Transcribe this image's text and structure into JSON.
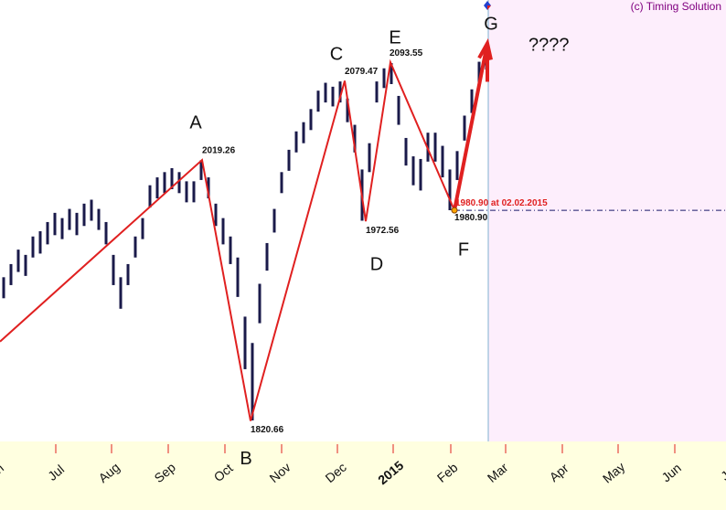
{
  "chart_data": {
    "type": "price-bars",
    "watermark": "(c) Timing Solution",
    "question": "????",
    "ylim": [
      1805,
      2141
    ],
    "color": "#1a1a4a",
    "high": [
      1930,
      1940,
      1951,
      1947,
      1961,
      1965,
      1972,
      1979,
      1975,
      1982,
      1979,
      1986,
      1989,
      1982,
      1972,
      1947,
      1930,
      1940,
      1961,
      1975,
      2000,
      2006,
      2010,
      2013,
      2010,
      2003,
      2003,
      2019,
      2006,
      1986,
      1975,
      1961,
      1945,
      1900,
      1880,
      1925,
      1956,
      1982,
      2010,
      2027,
      2041,
      2048,
      2058,
      2072,
      2078,
      2075,
      2079,
      2066,
      2046,
      2012,
      2032,
      2079,
      2089,
      2093,
      2068,
      2036,
      2022,
      2020,
      2040,
      2040,
      2030,
      2012,
      2026,
      2053,
      2073,
      2094,
      2104
    ],
    "low": [
      1914,
      1924,
      1934,
      1931,
      1945,
      1948,
      1955,
      1962,
      1959,
      1966,
      1962,
      1969,
      1973,
      1966,
      1955,
      1924,
      1906,
      1924,
      1945,
      1959,
      1983,
      1990,
      1994,
      1997,
      1994,
      1987,
      1987,
      2004,
      1990,
      1969,
      1955,
      1940,
      1915,
      1860,
      1821,
      1895,
      1935,
      1964,
      1994,
      2011,
      2025,
      2032,
      2042,
      2056,
      2063,
      2060,
      2063,
      2048,
      2025,
      1973,
      2010,
      2063,
      2074,
      2077,
      2046,
      2015,
      2000,
      1996,
      2018,
      2018,
      2006,
      1981,
      2004,
      2034,
      2055,
      2077,
      2088
    ],
    "zigzag": {
      "color": "#e02020",
      "values": [
        1881,
        2019.26,
        1820.66,
        2079.47,
        1972.56,
        2093.55,
        1980.9,
        2108
      ],
      "value_labels": [
        null,
        "2019.26",
        "1820.66",
        "2079.47",
        "1972.56",
        "2093.55",
        "1980.90",
        null
      ],
      "wave_labels": [
        null,
        "A",
        "B",
        "C",
        "D",
        "E",
        "F",
        "G"
      ]
    },
    "level": {
      "value": 1980.9,
      "label": "1980.90 at 02.02.2015",
      "color": "#e02020"
    },
    "x_labels": [
      "Jun",
      "Jul",
      "Aug",
      "Sep",
      "Oct",
      "Nov",
      "Dec",
      "2015",
      "Feb",
      "Mar",
      "Apr",
      "May",
      "Jun",
      "Jul"
    ]
  }
}
